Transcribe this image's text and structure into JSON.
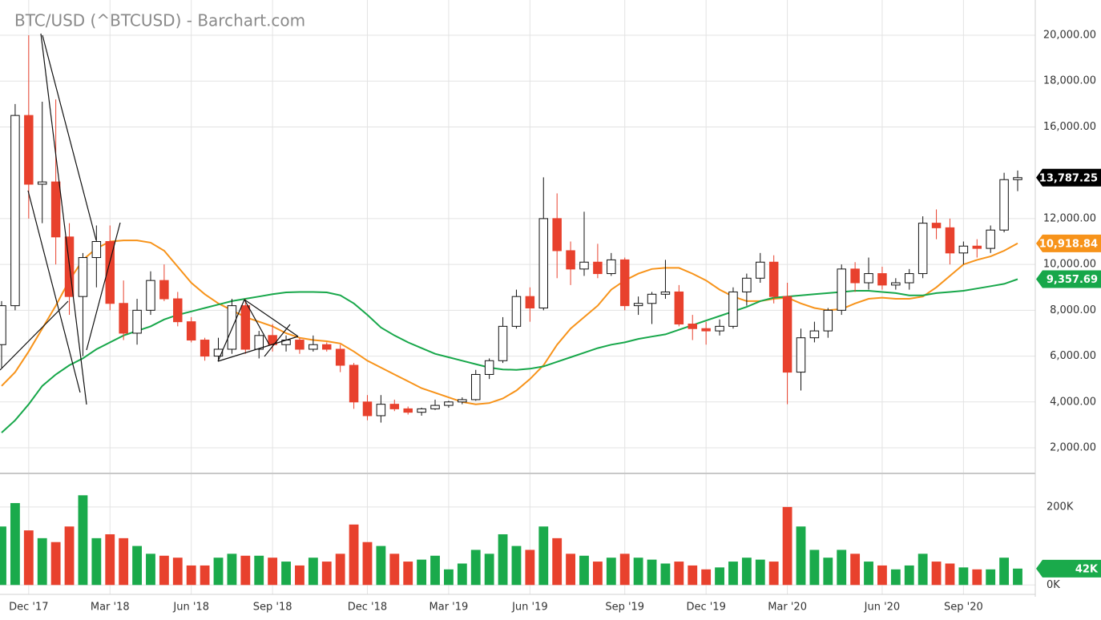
{
  "chart_data": [
    {
      "type": "candlestick",
      "title": "BTC/USD (^BTCUSD) - Barchart.com",
      "categories": [
        null,
        null,
        "Dec '17",
        null,
        null,
        null,
        null,
        null,
        "Mar '18",
        null,
        null,
        null,
        null,
        null,
        "Jun '18",
        null,
        null,
        null,
        null,
        null,
        "Sep '18",
        null,
        null,
        null,
        null,
        null,
        null,
        "Dec '18",
        null,
        null,
        null,
        null,
        null,
        "Mar '19",
        null,
        null,
        null,
        null,
        null,
        "Jun '19",
        null,
        null,
        null,
        null,
        null,
        null,
        "Sep '19",
        null,
        null,
        null,
        null,
        null,
        "Dec '19",
        null,
        null,
        null,
        null,
        null,
        "Mar '20",
        null,
        null,
        null,
        null,
        null,
        null,
        "Jun '20",
        null,
        null,
        null,
        null,
        null,
        "Sep '20",
        null,
        null,
        null,
        null
      ],
      "open": [
        6500,
        8200,
        16500,
        13500,
        13600,
        11200,
        8600,
        10300,
        11000,
        8300,
        7000,
        8000,
        9300,
        8500,
        7500,
        6700,
        6000,
        6300,
        8200,
        6300,
        6900,
        6500,
        6700,
        6300,
        6500,
        6300,
        5600,
        4000,
        3400,
        3900,
        3700,
        3550,
        3700,
        3850,
        4000,
        4100,
        5200,
        5800,
        7300,
        8600,
        8100,
        12000,
        10600,
        9800,
        10100,
        9600,
        10200,
        8200,
        8300,
        8700,
        8800,
        7400,
        7200,
        7100,
        7300,
        8800,
        9400,
        10100,
        8600,
        5300,
        6800,
        7100,
        8000,
        9800,
        9200,
        9600,
        9100,
        9200,
        9600,
        11800,
        11600,
        10500,
        10800,
        10700,
        11500,
        13700
      ],
      "high": [
        8400,
        17000,
        20000,
        17100,
        17200,
        11800,
        10500,
        11700,
        11700,
        9300,
        8500,
        9700,
        10000,
        8800,
        7700,
        6800,
        6800,
        8500,
        8500,
        7100,
        7400,
        6900,
        6800,
        6900,
        6600,
        6500,
        5700,
        4300,
        4300,
        4100,
        3800,
        3750,
        4100,
        4050,
        4200,
        5400,
        5900,
        7700,
        8900,
        9000,
        13800,
        13100,
        11000,
        12300,
        10900,
        10500,
        10300,
        8600,
        8800,
        10200,
        9100,
        7800,
        7500,
        7600,
        9000,
        9600,
        10500,
        10400,
        9200,
        7200,
        7500,
        8100,
        10000,
        10100,
        10300,
        9900,
        9400,
        9800,
        12100,
        12400,
        12000,
        11000,
        11100,
        11700,
        14000,
        14100
      ],
      "low": [
        5500,
        8000,
        12000,
        11800,
        10000,
        7800,
        6000,
        9000,
        8000,
        6700,
        6500,
        7800,
        8400,
        7300,
        6600,
        5800,
        5800,
        6100,
        6100,
        5900,
        6200,
        6200,
        6100,
        6200,
        6200,
        5300,
        3700,
        3200,
        3100,
        3600,
        3450,
        3400,
        3650,
        3750,
        3900,
        4050,
        5000,
        5700,
        7200,
        7500,
        8000,
        9400,
        9100,
        9500,
        9400,
        9500,
        8000,
        7800,
        7400,
        8500,
        7300,
        6700,
        6500,
        6900,
        7200,
        8200,
        9200,
        8300,
        3900,
        4500,
        6600,
        6800,
        7800,
        8800,
        8900,
        8900,
        8900,
        8900,
        9400,
        11100,
        10000,
        10000,
        10300,
        10500,
        11400,
        13200
      ],
      "close": [
        8200,
        16500,
        13500,
        13600,
        11200,
        8600,
        10300,
        11000,
        8300,
        7000,
        8000,
        9300,
        8500,
        7500,
        6700,
        6000,
        6300,
        8200,
        6300,
        6900,
        6500,
        6700,
        6300,
        6500,
        6300,
        5600,
        4000,
        3400,
        3900,
        3700,
        3550,
        3700,
        3850,
        4000,
        4100,
        5200,
        5800,
        7300,
        8600,
        8100,
        12000,
        10600,
        9800,
        10100,
        9600,
        10200,
        8200,
        8300,
        8700,
        8800,
        7400,
        7200,
        7100,
        7300,
        8800,
        9400,
        10100,
        8600,
        5300,
        6800,
        7100,
        8000,
        9800,
        9200,
        9600,
        9100,
        9200,
        9600,
        11800,
        11600,
        10500,
        10800,
        10700,
        11500,
        13700,
        13787.25
      ],
      "up_color": "#ffffff",
      "down_color": "#e8412d",
      "moving_averages": [
        {
          "color": "#f7931a",
          "values": [
            4700,
            5300,
            6200,
            7200,
            8200,
            9300,
            10200,
            10700,
            11000,
            11050,
            11050,
            10950,
            10600,
            9900,
            9200,
            8700,
            8300,
            8000,
            7700,
            7500,
            7300,
            7000,
            6800,
            6700,
            6650,
            6550,
            6200,
            5800,
            5500,
            5200,
            4900,
            4600,
            4400,
            4200,
            4000,
            3900,
            3950,
            4150,
            4500,
            5000,
            5600,
            6500,
            7200,
            7700,
            8200,
            8900,
            9300,
            9600,
            9800,
            9850,
            9850,
            9600,
            9300,
            8900,
            8600,
            8400,
            8400,
            8500,
            8550,
            8300,
            8100,
            8000,
            8050,
            8300,
            8500,
            8550,
            8500,
            8500,
            8600,
            9000,
            9500,
            10000,
            10200,
            10350,
            10600,
            10918.84
          ]
        },
        {
          "color": "#17a74a",
          "values": [
            2660,
            3200,
            3900,
            4700,
            5200,
            5600,
            5900,
            6300,
            6600,
            6900,
            7100,
            7300,
            7600,
            7800,
            7950,
            8100,
            8250,
            8400,
            8500,
            8600,
            8700,
            8780,
            8800,
            8800,
            8780,
            8650,
            8300,
            7800,
            7250,
            6900,
            6600,
            6350,
            6100,
            5950,
            5800,
            5650,
            5500,
            5420,
            5400,
            5450,
            5550,
            5750,
            5950,
            6150,
            6350,
            6500,
            6600,
            6750,
            6850,
            6950,
            7150,
            7350,
            7550,
            7750,
            7950,
            8150,
            8400,
            8550,
            8600,
            8650,
            8700,
            8750,
            8800,
            8850,
            8850,
            8800,
            8750,
            8650,
            8650,
            8750,
            8800,
            8850,
            8950,
            9050,
            9150,
            9357.69
          ]
        }
      ],
      "markers": [
        {
          "value": 13787.25,
          "label": "13,787.25",
          "color": "#000000"
        },
        {
          "value": 10918.84,
          "label": "10,918.84",
          "color": "#f7931a"
        },
        {
          "value": 9357.69,
          "label": "9,357.69",
          "color": "#17a74a"
        }
      ],
      "ylim": [
        917,
        21538
      ],
      "yticks": [
        {
          "value": 2000,
          "label": "2,000.00"
        },
        {
          "value": 4000,
          "label": "4,000.00"
        },
        {
          "value": 6000,
          "label": "6,000.00"
        },
        {
          "value": 8000,
          "label": "8,000.00"
        },
        {
          "value": 10000,
          "label": "10,000.00"
        },
        {
          "value": 12000,
          "label": "12,000.00"
        },
        {
          "value": 16000,
          "label": "16,000.00"
        },
        {
          "value": 18000,
          "label": "18,000.00"
        },
        {
          "value": 20000,
          "label": "20,000.00"
        }
      ],
      "grid": true
    },
    {
      "type": "bar",
      "values": [
        150000,
        210000,
        140000,
        120000,
        110000,
        150000,
        230000,
        120000,
        130000,
        120000,
        100000,
        80000,
        75000,
        70000,
        50000,
        50000,
        70000,
        80000,
        75000,
        75000,
        70000,
        60000,
        50000,
        70000,
        60000,
        80000,
        155000,
        110000,
        100000,
        80000,
        60000,
        65000,
        75000,
        40000,
        55000,
        90000,
        80000,
        130000,
        100000,
        90000,
        150000,
        120000,
        80000,
        75000,
        60000,
        70000,
        80000,
        70000,
        65000,
        55000,
        60000,
        50000,
        40000,
        45000,
        60000,
        70000,
        65000,
        60000,
        200000,
        150000,
        90000,
        70000,
        90000,
        80000,
        60000,
        50000,
        40000,
        50000,
        80000,
        60000,
        55000,
        45000,
        40000,
        40000,
        70000,
        42000
      ],
      "up_color": "#1aaa4b",
      "down_color": "#e8412d",
      "markers": [
        {
          "value": 42000,
          "label": "42K",
          "color": "#1aaa4b"
        }
      ],
      "ylim": [
        -20000,
        282000
      ],
      "yticks": [
        {
          "value": 0,
          "label": "0K"
        },
        {
          "value": 200000,
          "label": "200K"
        }
      ],
      "grid": true
    }
  ]
}
